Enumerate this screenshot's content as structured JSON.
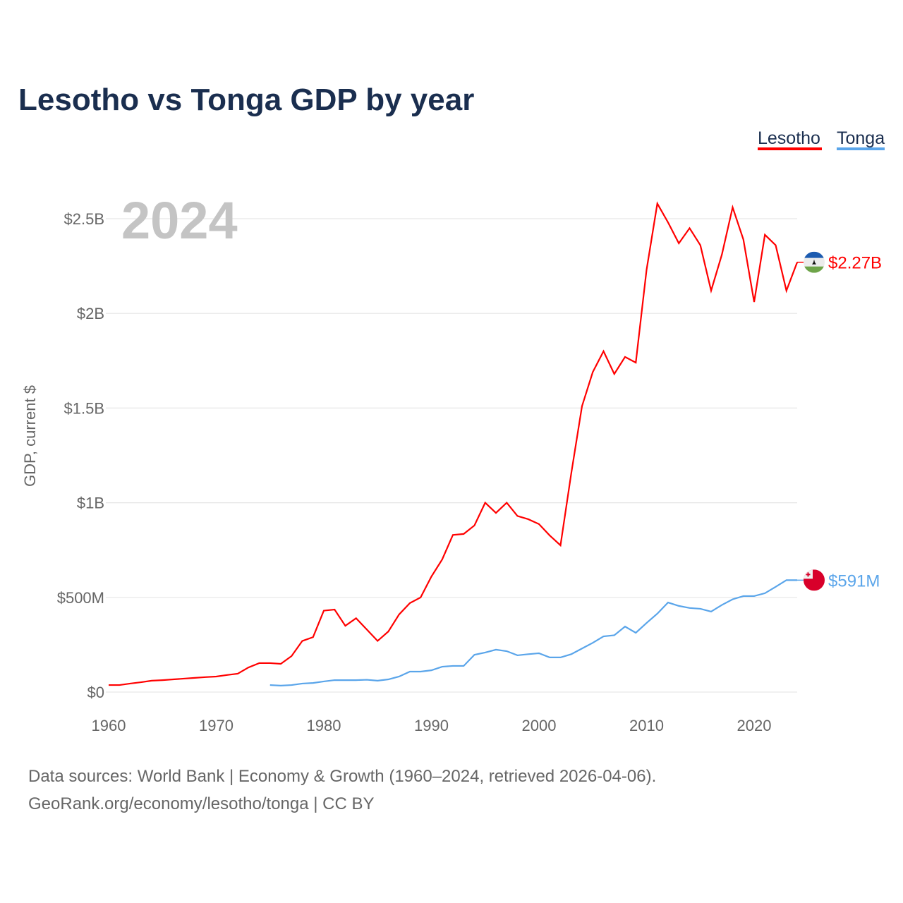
{
  "chart_data": {
    "type": "line",
    "title": "Lesotho vs Tonga GDP by year",
    "xlabel": "",
    "ylabel": "GDP, current $",
    "xlim": [
      1960,
      2024
    ],
    "ylim": [
      0,
      2.5
    ],
    "units": "billions USD",
    "grid": true,
    "legend_placement": "top-right",
    "year_watermark": "2024",
    "x_ticks": [
      {
        "value": 1960,
        "label": "1960"
      },
      {
        "value": 1970,
        "label": "1970"
      },
      {
        "value": 1980,
        "label": "1980"
      },
      {
        "value": 1990,
        "label": "1990"
      },
      {
        "value": 2000,
        "label": "2000"
      },
      {
        "value": 2010,
        "label": "2010"
      },
      {
        "value": 2020,
        "label": "2020"
      }
    ],
    "y_ticks": [
      {
        "value": 0,
        "label": "$0"
      },
      {
        "value": 0.5,
        "label": "$500M"
      },
      {
        "value": 1,
        "label": "$1B"
      },
      {
        "value": 1.5,
        "label": "$1.5B"
      },
      {
        "value": 2,
        "label": "$2B"
      },
      {
        "value": 2.5,
        "label": "$2.5B"
      }
    ],
    "series": [
      {
        "name": "Lesotho",
        "color": "#ff0000",
        "end_label": "$2.27B",
        "flag": "lesotho-flag",
        "start_year": 1960,
        "values": [
          0.037,
          0.037,
          0.045,
          0.052,
          0.06,
          0.063,
          0.067,
          0.071,
          0.075,
          0.079,
          0.082,
          0.09,
          0.097,
          0.13,
          0.153,
          0.153,
          0.149,
          0.19,
          0.27,
          0.29,
          0.43,
          0.436,
          0.35,
          0.39,
          0.33,
          0.27,
          0.32,
          0.41,
          0.47,
          0.5,
          0.61,
          0.7,
          0.83,
          0.835,
          0.88,
          1.0,
          0.946,
          1.0,
          0.93,
          0.913,
          0.887,
          0.827,
          0.775,
          1.155,
          1.51,
          1.69,
          1.8,
          1.68,
          1.77,
          1.74,
          2.23,
          2.58,
          2.48,
          2.37,
          2.45,
          2.36,
          2.12,
          2.31,
          2.56,
          2.39,
          2.06,
          2.415,
          2.36,
          2.12,
          2.27
        ]
      },
      {
        "name": "Tonga",
        "color": "#5aa5ea",
        "end_label": "$591M",
        "flag": "tonga-flag",
        "start_year": 1975,
        "values": [
          0.037,
          0.034,
          0.037,
          0.045,
          0.048,
          0.056,
          0.063,
          0.063,
          0.063,
          0.065,
          0.06,
          0.067,
          0.082,
          0.108,
          0.108,
          0.115,
          0.134,
          0.138,
          0.138,
          0.197,
          0.209,
          0.224,
          0.216,
          0.194,
          0.2,
          0.205,
          0.183,
          0.183,
          0.2,
          0.23,
          0.26,
          0.294,
          0.3,
          0.346,
          0.313,
          0.365,
          0.414,
          0.473,
          0.455,
          0.444,
          0.44,
          0.425,
          0.46,
          0.49,
          0.507,
          0.507,
          0.522,
          0.556,
          0.591,
          0.591
        ]
      }
    ]
  },
  "footer": {
    "line1": "Data sources: World Bank | Economy & Growth (1960–2024, retrieved 2026-04-06).",
    "line2": "GeoRank.org/economy/lesotho/tonga | CC BY"
  }
}
